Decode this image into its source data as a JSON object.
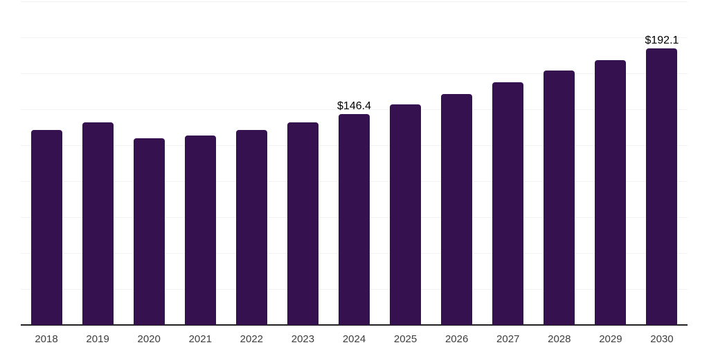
{
  "chart_data": {
    "type": "bar",
    "title": "",
    "xlabel": "",
    "ylabel": "",
    "categories": [
      "2018",
      "2019",
      "2020",
      "2021",
      "2022",
      "2023",
      "2024",
      "2025",
      "2026",
      "2027",
      "2028",
      "2029",
      "2030"
    ],
    "values": [
      135.5,
      141.0,
      129.6,
      131.9,
      135.4,
      140.7,
      146.4,
      153.4,
      160.6,
      168.6,
      176.9,
      184.1,
      192.1
    ],
    "data_labels": [
      {
        "index": 6,
        "text": "$146.4"
      },
      {
        "index": 12,
        "text": "$192.1"
      }
    ],
    "ylim": [
      0,
      225
    ],
    "gridline_step": 25,
    "grid": true,
    "legend": false,
    "y_tick_labels_visible": false
  },
  "colors": {
    "background": "#ffffff",
    "bar": "#361150",
    "gridline": "#f2f2f2",
    "axis_line": "#222222",
    "x_tick_label": "#3d3d3d",
    "value_label": "#000000"
  }
}
